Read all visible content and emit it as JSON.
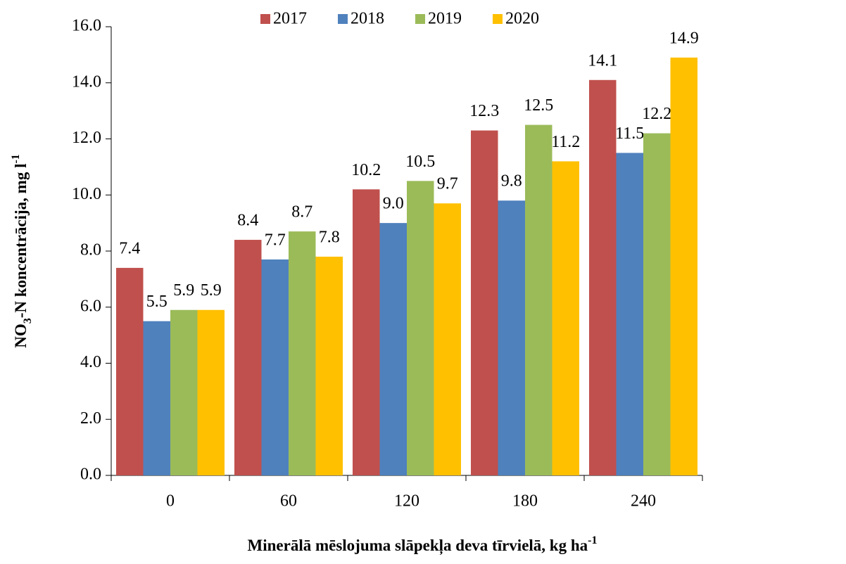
{
  "chart_data": {
    "type": "bar",
    "categories": [
      "0",
      "60",
      "120",
      "180",
      "240"
    ],
    "series": [
      {
        "name": "2017",
        "color": "#c0504d",
        "values": [
          7.4,
          8.4,
          10.2,
          12.3,
          14.1
        ],
        "value_labels": [
          "7.4",
          "8.4",
          "10.2",
          "12.3",
          "14.1"
        ]
      },
      {
        "name": "2018",
        "color": "#4f81bd",
        "values": [
          5.5,
          7.7,
          9.0,
          9.8,
          11.5
        ],
        "value_labels": [
          "5.5",
          "7.7",
          "9.0",
          "9.8",
          "11.5"
        ]
      },
      {
        "name": "2019",
        "color": "#9bbb59",
        "values": [
          5.9,
          8.7,
          10.5,
          12.5,
          12.2
        ],
        "value_labels": [
          "5.9",
          "8.7",
          "10.5",
          "12.5",
          "12.2"
        ]
      },
      {
        "name": "2020",
        "color": "#ffc000",
        "values": [
          5.9,
          7.8,
          9.7,
          11.2,
          14.9
        ],
        "value_labels": [
          "5.9",
          "7.8",
          "9.7",
          "11.2",
          "14.9"
        ]
      }
    ],
    "ylim": [
      0,
      16
    ],
    "yticks": [
      {
        "value": 0,
        "label": "0.0"
      },
      {
        "value": 2,
        "label": "2.0"
      },
      {
        "value": 4,
        "label": "4.0"
      },
      {
        "value": 6,
        "label": "6.0"
      },
      {
        "value": 8,
        "label": "8.0"
      },
      {
        "value": 10,
        "label": "10.0"
      },
      {
        "value": 12,
        "label": "12.0"
      },
      {
        "value": 14,
        "label": "14.0"
      },
      {
        "value": 16,
        "label": "16.0"
      }
    ],
    "y_label": [
      "NO",
      "3",
      "-N koncentrācija, mg l",
      "-1"
    ],
    "x_label": [
      "Minerālā mēslojuma slāpekļa deva tīrvielā, kg ha",
      "-1"
    ],
    "legend": "top"
  }
}
